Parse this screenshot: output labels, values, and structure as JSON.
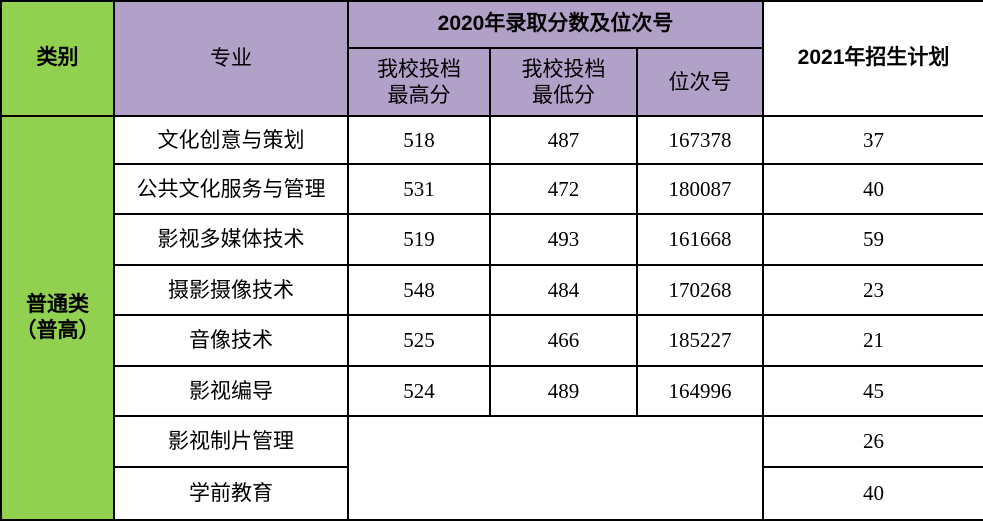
{
  "colors": {
    "category_bg": "#92d050",
    "header_bg": "#b1a0c7"
  },
  "header": {
    "category": "类别",
    "major": "专业",
    "group_2020": "2020年录取分数及位次号",
    "max_score": [
      "我校投档",
      "最高分"
    ],
    "min_score": [
      "我校投档",
      "最低分"
    ],
    "rank": "位次号",
    "plan_2021": "2021年招生计划"
  },
  "category": [
    "普通类",
    "（普高）"
  ],
  "rows": [
    {
      "major": "文化创意与策划",
      "max": "518",
      "min": "487",
      "rank": "167378",
      "plan": "37"
    },
    {
      "major": "公共文化服务与管理",
      "max": "531",
      "min": "472",
      "rank": "180087",
      "plan": "40"
    },
    {
      "major": "影视多媒体技术",
      "max": "519",
      "min": "493",
      "rank": "161668",
      "plan": "59"
    },
    {
      "major": "摄影摄像技术",
      "max": "548",
      "min": "484",
      "rank": "170268",
      "plan": "23"
    },
    {
      "major": "音像技术",
      "max": "525",
      "min": "466",
      "rank": "185227",
      "plan": "21"
    },
    {
      "major": "影视编导",
      "max": "524",
      "min": "489",
      "rank": "164996",
      "plan": "45"
    },
    {
      "major": "影视制片管理",
      "plan": "26"
    },
    {
      "major": "学前教育",
      "plan": "40"
    }
  ]
}
